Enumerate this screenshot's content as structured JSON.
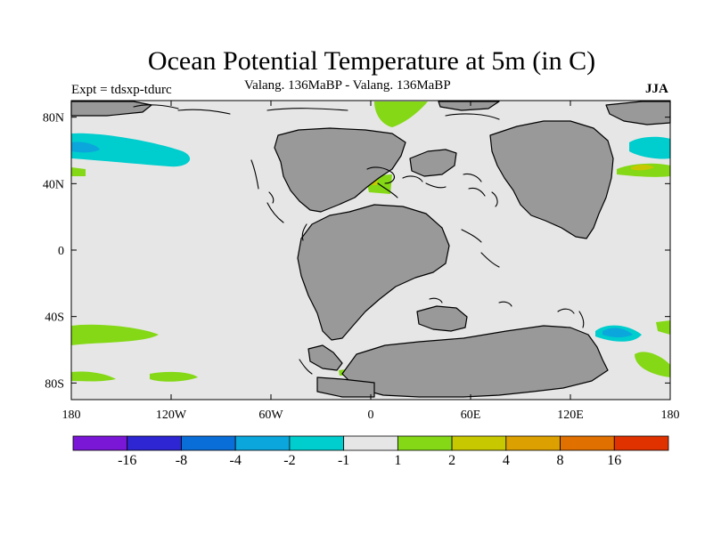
{
  "title": "Ocean Potential Temperature at 5m (in C)",
  "experiment": "Expt = tdsxp-tdurc",
  "subtitle": "Valang. 136MaBP - Valang.  136MaBP",
  "season": "JJA",
  "map": {
    "lon_range": [
      -180,
      180
    ],
    "lat_range": [
      -90,
      90
    ],
    "x_ticks": [
      {
        "lon": -180,
        "label": "180"
      },
      {
        "lon": -120,
        "label": "120W"
      },
      {
        "lon": -60,
        "label": "60W"
      },
      {
        "lon": 0,
        "label": "0"
      },
      {
        "lon": 60,
        "label": "60E"
      },
      {
        "lon": 120,
        "label": "120E"
      },
      {
        "lon": 180,
        "label": "180"
      }
    ],
    "y_ticks": [
      {
        "lat": 80,
        "label": "80N"
      },
      {
        "lat": 40,
        "label": "40N"
      },
      {
        "lat": 0,
        "label": "0"
      },
      {
        "lat": -40,
        "label": "40S"
      },
      {
        "lat": -80,
        "label": "80S"
      }
    ],
    "colors": {
      "ocean": "#e6e6e6",
      "land": "#999999",
      "coast": "#000000"
    }
  },
  "colorbar": {
    "colors": [
      "#7a16d6",
      "#2d26d2",
      "#0a6ed8",
      "#0aa6dc",
      "#00cdcd",
      "#e6e6e6",
      "#84d816",
      "#c8c800",
      "#dca000",
      "#e07000",
      "#e03200"
    ],
    "labels": [
      "-16",
      "-8",
      "-4",
      "-2",
      "-1",
      "1",
      "2",
      "4",
      "8",
      "16"
    ]
  }
}
